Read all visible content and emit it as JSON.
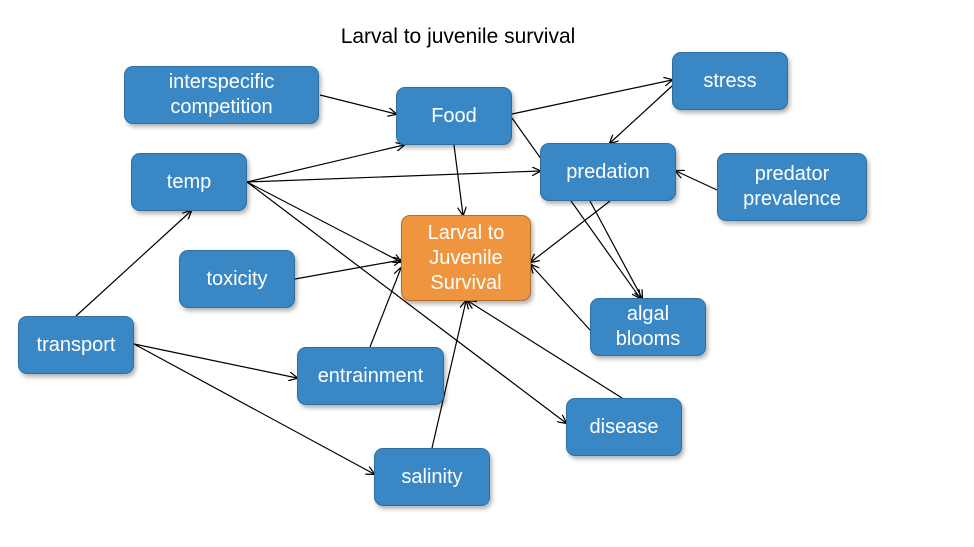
{
  "title": "Larval to juvenile survival",
  "colors": {
    "node_fill": "#3a87c6",
    "central_fill": "#f0953f",
    "edge": "#000000"
  },
  "nodes": [
    {
      "id": "interspecific",
      "label": "interspecific\ncompetition"
    },
    {
      "id": "food",
      "label": "Food"
    },
    {
      "id": "stress",
      "label": "stress"
    },
    {
      "id": "temp",
      "label": "temp"
    },
    {
      "id": "predation",
      "label": "predation"
    },
    {
      "id": "predator_prevalence",
      "label": "predator\nprevalence"
    },
    {
      "id": "central",
      "label": "Larval to\nJuvenile\nSurvival"
    },
    {
      "id": "toxicity",
      "label": "toxicity"
    },
    {
      "id": "algal",
      "label": "algal\nblooms"
    },
    {
      "id": "transport",
      "label": "transport"
    },
    {
      "id": "entrainment",
      "label": "entrainment"
    },
    {
      "id": "disease",
      "label": "disease"
    },
    {
      "id": "salinity",
      "label": "salinity"
    }
  ],
  "edges": [
    {
      "from": "interspecific",
      "to": "food"
    },
    {
      "from": "food",
      "to": "stress"
    },
    {
      "from": "food",
      "to": "central"
    },
    {
      "from": "food",
      "to": "algal"
    },
    {
      "from": "stress",
      "to": "predation"
    },
    {
      "from": "temp",
      "to": "food"
    },
    {
      "from": "temp",
      "to": "predation"
    },
    {
      "from": "temp",
      "to": "central"
    },
    {
      "from": "temp",
      "to": "disease"
    },
    {
      "from": "predator_prevalence",
      "to": "predation"
    },
    {
      "from": "predation",
      "to": "central"
    },
    {
      "from": "predation",
      "to": "algal"
    },
    {
      "from": "toxicity",
      "to": "central"
    },
    {
      "from": "algal",
      "to": "central"
    },
    {
      "from": "transport",
      "to": "temp"
    },
    {
      "from": "transport",
      "to": "entrainment"
    },
    {
      "from": "transport",
      "to": "salinity"
    },
    {
      "from": "entrainment",
      "to": "central"
    },
    {
      "from": "disease",
      "to": "central"
    },
    {
      "from": "salinity",
      "to": "central"
    }
  ]
}
